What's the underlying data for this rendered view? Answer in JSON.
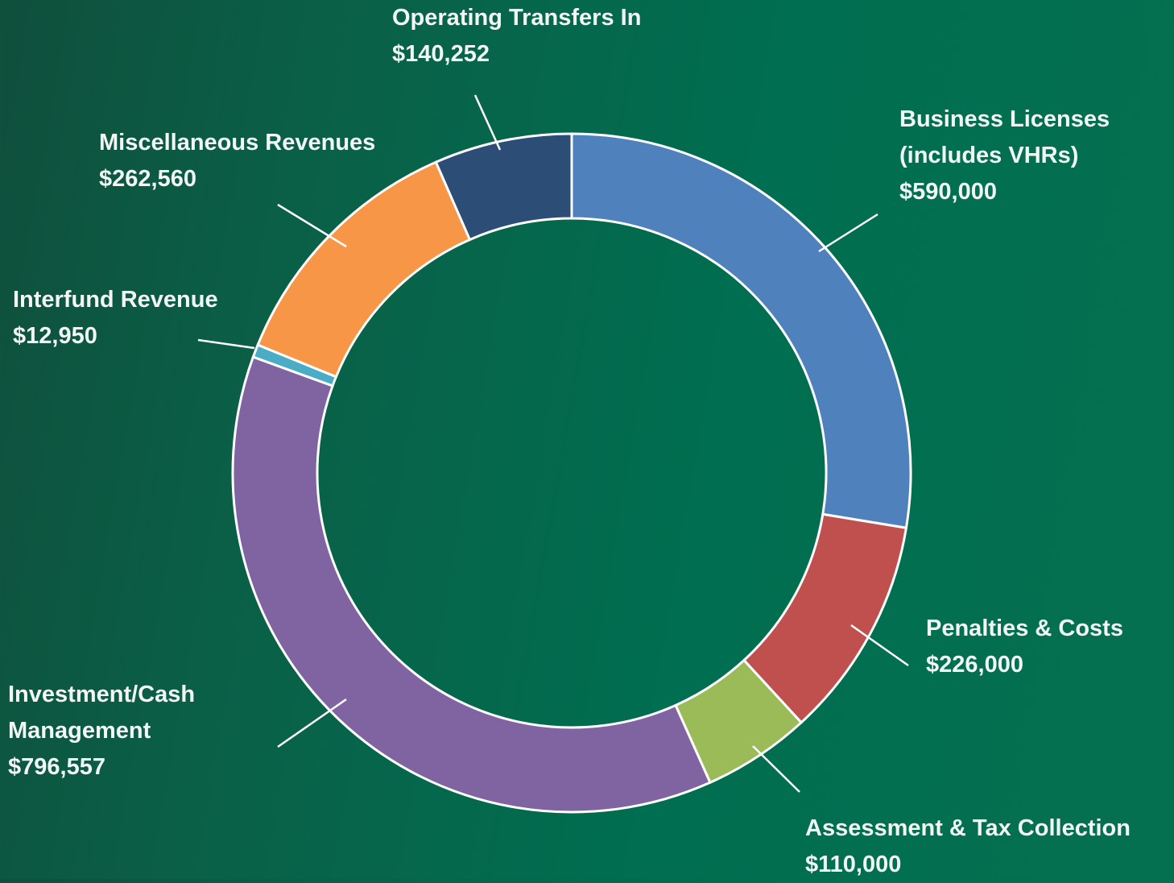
{
  "chart_data": {
    "type": "donut",
    "categories": [
      "Business Licenses (includes VHRs)",
      "Penalties & Costs",
      "Assessment & Tax Collection",
      "Investment/Cash Management",
      "Interfund Revenue",
      "Miscellaneous Revenues",
      "Operating Transfers In"
    ],
    "values": [
      590000,
      226000,
      110000,
      796557,
      12950,
      262560,
      140252
    ],
    "value_labels": [
      "$590,000",
      "$226,000",
      "$110,000",
      "$796,557",
      "$12,950",
      "$262,560",
      "$140,252"
    ],
    "colors": [
      "#4f81bd",
      "#c0504d",
      "#9bbb59",
      "#8064a2",
      "#4bacc6",
      "#f79646",
      "#2c4d75"
    ]
  }
}
